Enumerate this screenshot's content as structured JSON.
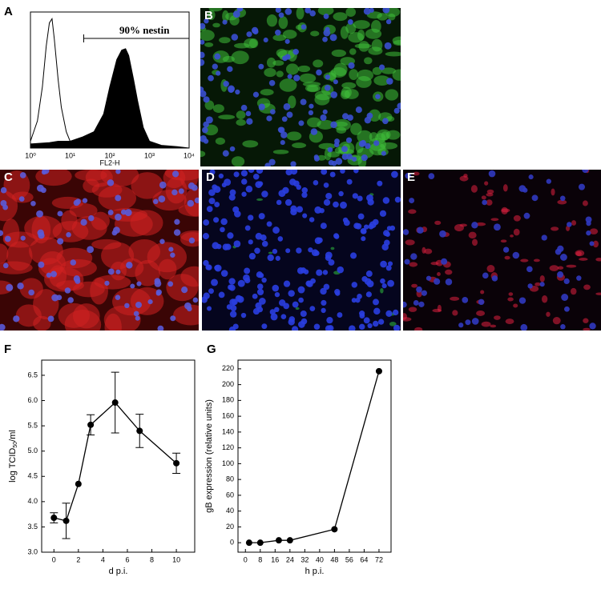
{
  "chart_data": [
    {
      "type": "line",
      "panel": "A",
      "xlog": true,
      "xlabel": "FL2-H",
      "annotation": "90%  nestin",
      "gate": [
        22,
        10000
      ],
      "xlim": [
        1,
        10000
      ],
      "ylim": [
        0,
        100
      ],
      "xticks": [
        {
          "value": 1,
          "label": "10⁰"
        },
        {
          "value": 10,
          "label": "10¹"
        },
        {
          "value": 100,
          "label": "10²"
        },
        {
          "value": 1000,
          "label": "10³"
        },
        {
          "value": 10000,
          "label": "10⁴"
        }
      ],
      "series": [
        {
          "color": "#000000",
          "fill": false,
          "x": [
            1,
            1.5,
            2,
            2.5,
            3,
            3.5,
            4,
            5,
            6,
            8,
            10,
            15,
            20,
            40
          ],
          "values": [
            5,
            20,
            45,
            75,
            92,
            95,
            80,
            50,
            30,
            12,
            5,
            2,
            1,
            0
          ]
        },
        {
          "color": "#000000",
          "fill": true,
          "x": [
            1,
            3,
            5,
            10,
            20,
            40,
            70,
            100,
            150,
            200,
            250,
            300,
            400,
            500,
            700,
            1000,
            2000,
            5000,
            10000
          ],
          "values": [
            3,
            4,
            5,
            5,
            8,
            12,
            25,
            45,
            65,
            72,
            73,
            68,
            50,
            35,
            15,
            5,
            2,
            1,
            0
          ]
        }
      ]
    },
    {
      "type": "errorline",
      "panel": "F",
      "xlabel": "d p.i.",
      "ylabel": [
        "log TCID",
        "50",
        "/ml"
      ],
      "xlim": [
        -1,
        11.5
      ],
      "ylim": [
        3.0,
        6.8
      ],
      "xticks": [
        0,
        2,
        4,
        6,
        8,
        10
      ],
      "yticks": [
        {
          "value": 3.0,
          "label": "3.0"
        },
        3.5,
        {
          "value": 4.0,
          "label": "4.0"
        },
        4.5,
        {
          "value": 5.0,
          "label": "5.0"
        },
        5.5,
        {
          "value": 6.0,
          "label": "6.0"
        },
        6.5
      ],
      "x": [
        0,
        1,
        2,
        3,
        5,
        7,
        10
      ],
      "values": [
        3.68,
        3.62,
        4.35,
        5.52,
        5.96,
        5.4,
        4.76
      ],
      "errors": [
        0.1,
        0.35,
        null,
        0.2,
        0.6,
        0.33,
        0.2
      ],
      "color": "#000000"
    },
    {
      "type": "errorline",
      "panel": "G",
      "xlabel": "h p.i.",
      "ylabel": [
        "gB expression (relative units)"
      ],
      "xlim": [
        -4,
        78.5
      ],
      "ylim": [
        -12,
        231
      ],
      "xticks": [
        0,
        8,
        16,
        24,
        32,
        40,
        48,
        56,
        64,
        72
      ],
      "yticks": [
        0,
        20,
        40,
        60,
        80,
        100,
        120,
        140,
        160,
        180,
        200,
        220
      ],
      "x": [
        2,
        8,
        18,
        24,
        48,
        72
      ],
      "values": [
        0,
        0,
        3,
        3,
        17,
        217
      ],
      "color": "#000000"
    }
  ],
  "image_panels": [
    {
      "label": "B"
    },
    {
      "label": "C"
    },
    {
      "label": "D"
    },
    {
      "label": "E"
    }
  ]
}
